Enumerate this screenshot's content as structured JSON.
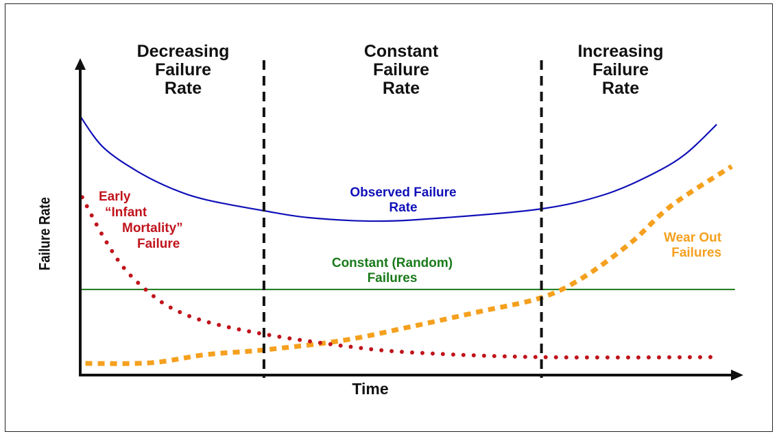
{
  "chart_data": {
    "type": "line",
    "title": "",
    "xlabel": "Time",
    "ylabel": "Failure Rate",
    "xlim": [
      0,
      100
    ],
    "ylim": [
      0,
      100
    ],
    "grid": false,
    "regions": [
      {
        "label_lines": [
          "Decreasing",
          "Failure",
          "Rate"
        ]
      },
      {
        "label_lines": [
          "Constant",
          "Failure",
          "Rate"
        ]
      },
      {
        "label_lines": [
          "Increasing",
          "Failure",
          "Rate"
        ]
      }
    ],
    "dividers": [
      28.2,
      70.8
    ],
    "series": [
      {
        "name": "Observed Failure Rate",
        "label_lines": [
          "Observed Failure",
          "Rate"
        ],
        "color": "#1010b8",
        "style": "solid",
        "x": [
          0,
          3.5,
          8.7,
          14,
          19.3,
          28.2,
          35.1,
          45.6,
          56.1,
          70.8,
          80.3,
          87.7,
          92.9,
          97.7
        ],
        "y": [
          82.2,
          72.4,
          64.8,
          59.3,
          55.7,
          52.2,
          50,
          48.9,
          50,
          52.8,
          57.2,
          63.7,
          70.2,
          79.6
        ]
      },
      {
        "name": "Early “Infant Mortality” Failure",
        "label_lines": [
          "Early",
          "“Infant",
          "Mortality”",
          "Failure"
        ],
        "color": "#c0141c",
        "style": "dotted",
        "x": [
          0.3,
          3.5,
          6.6,
          10.3,
          14,
          19.3,
          28.2,
          40.3,
          50.8,
          70.8,
          98.2
        ],
        "y": [
          56.5,
          44.1,
          34.3,
          26.7,
          21.3,
          17,
          13,
          9.3,
          7.2,
          5.7,
          5.7
        ]
      },
      {
        "name": "Constant (Random) Failures",
        "label_lines": [
          "Constant (Random)",
          "Failures"
        ],
        "color": "#1a7a1a",
        "style": "solid",
        "x": [
          0,
          100.5
        ],
        "y": [
          27.2,
          27.2
        ]
      },
      {
        "name": "Wear Out Failures",
        "label_lines": [
          "Wear Out",
          "Failures"
        ],
        "color": "#f5a01e",
        "style": "dashed",
        "x": [
          0.8,
          10.8,
          19.3,
          28.2,
          40.3,
          50.8,
          61.4,
          70.8,
          77.2,
          84.5,
          90.8,
          100
        ],
        "y": [
          3.7,
          3.9,
          6.5,
          8,
          11,
          15.4,
          20.2,
          24.6,
          31,
          42,
          53.9,
          66.3
        ]
      }
    ]
  }
}
